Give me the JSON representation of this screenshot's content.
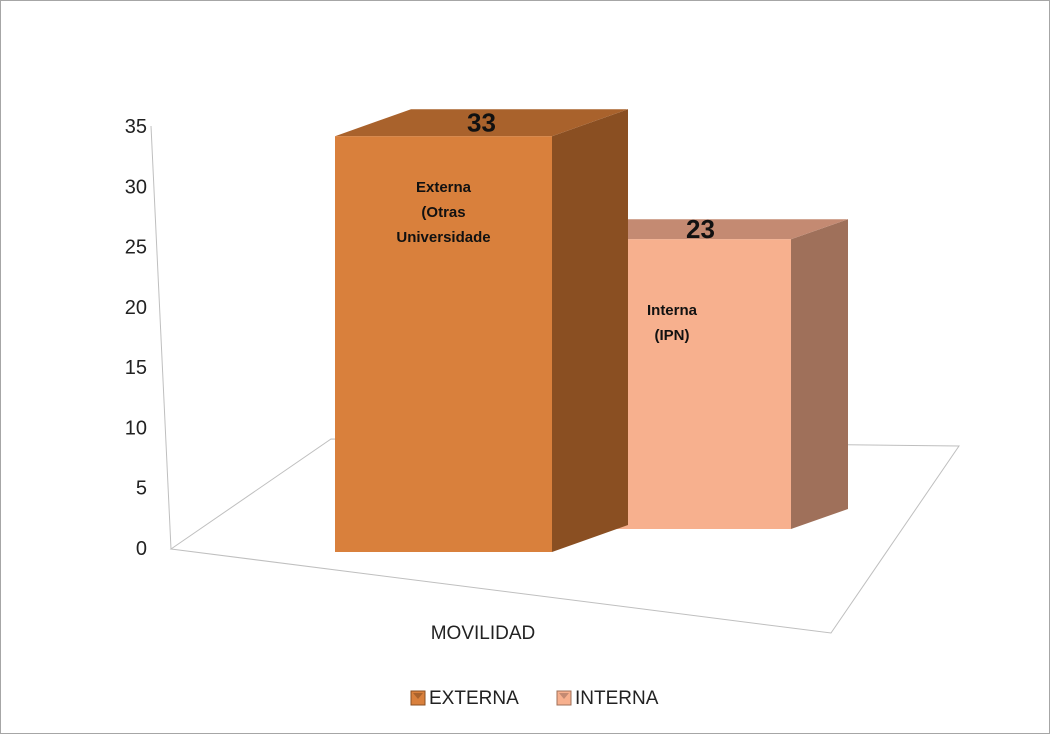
{
  "chart_data": {
    "type": "bar",
    "categories": [
      "MOVILIDAD"
    ],
    "series": [
      {
        "name": "EXTERNA",
        "values": [
          33
        ],
        "annotation": [
          "Externa",
          "(Otras",
          "Universidade"
        ],
        "color": "#D9803C",
        "side_color": "#8A4F22",
        "top_color": "#A9622C"
      },
      {
        "name": "INTERNA",
        "values": [
          23
        ],
        "annotation": [
          "Interna",
          "(IPN)"
        ],
        "color": "#F7B08E",
        "side_color": "#9F705A",
        "top_color": "#C48A72"
      }
    ],
    "ylim": [
      0,
      35
    ],
    "yticks": [
      0,
      5,
      10,
      15,
      20,
      25,
      30,
      35
    ],
    "legend": "bottom",
    "style": "3d-column",
    "title": "",
    "xlabel": "",
    "ylabel": ""
  }
}
